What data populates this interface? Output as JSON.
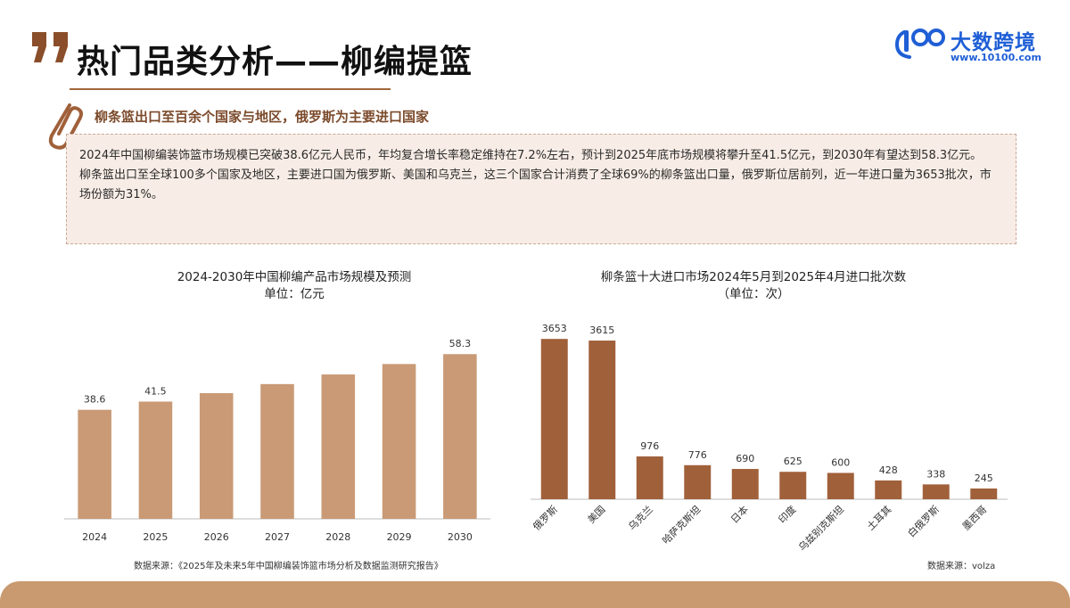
{
  "header": {
    "title": "热门品类分析——柳编提篮",
    "subtitle": "柳条篮出口至百余个国家与地区，俄罗斯为主要进口国家"
  },
  "logo": {
    "name": "大数跨境",
    "url": "www.10100.com",
    "mark": "100"
  },
  "info": {
    "paragraph1": "2024年中国柳编装饰篮市场规模已突破38.6亿元人民币，年均复合增长率稳定维持在7.2%左右，预计到2025年底市场规模将攀升至41.5亿元，到2030年有望达到58.3亿元。",
    "paragraph2": "柳条篮出口至全球100多个国家及地区，主要进口国为俄罗斯、美国和乌克兰，这三个国家合计消费了全球69%的柳条篮出口量，俄罗斯位居前列，近一年进口量为3653批次，市场份额为31%。"
  },
  "colors": {
    "accent": "#a0673a",
    "bar_left": "#c99a75",
    "bar_right": "#a0603a",
    "footer": "#c9996f",
    "logo_blue": "#1f5fd6"
  },
  "chart_data": [
    {
      "type": "bar",
      "title": "2024-2030年中国柳编产品市场规模及预测",
      "subtitle": "单位：亿元",
      "categories": [
        "2024",
        "2025",
        "2026",
        "2027",
        "2028",
        "2029",
        "2030"
      ],
      "values": [
        38.6,
        41.5,
        44.5,
        47.7,
        51.1,
        54.8,
        58.3
      ],
      "data_labels": [
        "38.6",
        "41.5",
        "",
        "",
        "",
        "",
        "58.3"
      ],
      "ylim": [
        0,
        65
      ],
      "grid": false,
      "source": "数据来源：《2025年及未来5年中国柳编装饰篮市场分析及数据监测研究报告》"
    },
    {
      "type": "bar",
      "title": "柳条篮十大进口市场2024年5月到2025年4月进口批次数",
      "subtitle": "（单位：次）",
      "categories": [
        "俄罗斯",
        "美国",
        "乌克兰",
        "哈萨克斯坦",
        "日本",
        "印度",
        "乌兹别克斯坦",
        "土耳其",
        "白俄罗斯",
        "墨西哥"
      ],
      "values": [
        3653,
        3615,
        976,
        776,
        690,
        625,
        600,
        428,
        338,
        245
      ],
      "data_labels": [
        "3653",
        "3615",
        "976",
        "776",
        "690",
        "625",
        "600",
        "428",
        "338",
        "245"
      ],
      "ylim": [
        0,
        3900
      ],
      "grid": false,
      "source": "数据来源：volza"
    }
  ]
}
